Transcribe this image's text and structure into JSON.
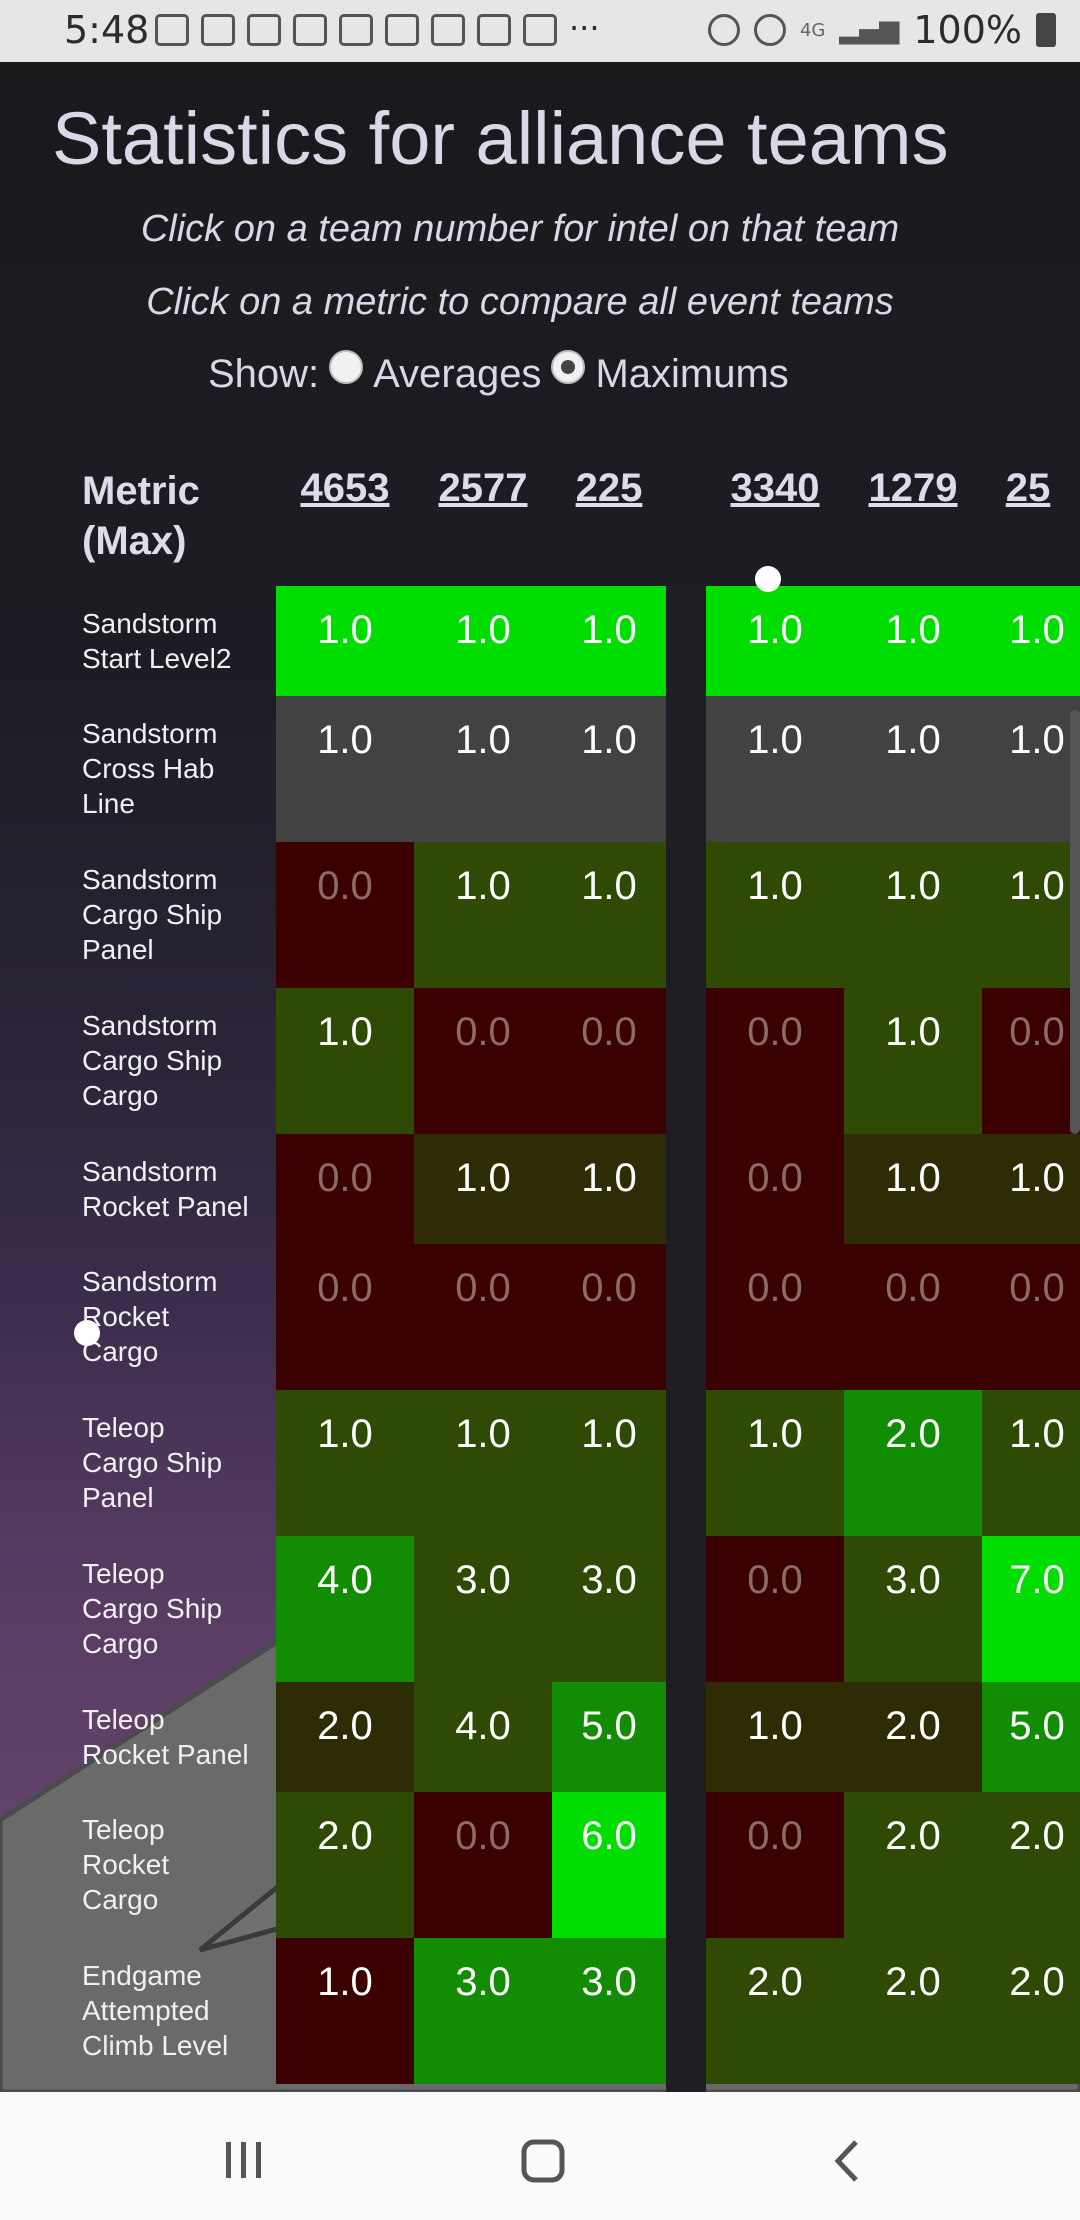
{
  "status_bar": {
    "time": "5:48",
    "battery": "100%",
    "network": "4G"
  },
  "page": {
    "title": "Statistics for alliance teams",
    "subtitle_1": "Click on a team number for intel on that team",
    "subtitle_2": "Click on a metric to compare all event teams",
    "show_label": "Show:",
    "option_averages": "Averages",
    "option_maximums": "Maximums",
    "selected_option": "Maximums"
  },
  "table": {
    "metric_header_line1": "Metric",
    "metric_header_line2": "(Max)",
    "teams": [
      "4653",
      "2577",
      "225",
      "3340",
      "1279",
      "25"
    ],
    "colors": {
      "bright": "#00dd00",
      "green": "#128c02",
      "dark_green": "#2e4a04",
      "olive": "#2e2c05",
      "maroon": "#3b0100",
      "gray": "#424242"
    },
    "rows": [
      {
        "line1": "Sandstorm",
        "line2": "Start Level2",
        "line3": "",
        "values": [
          "1.0",
          "1.0",
          "1.0",
          "1.0",
          "1.0",
          "1.0"
        ],
        "shades": [
          "bright",
          "bright",
          "bright",
          "bright",
          "bright",
          "bright"
        ]
      },
      {
        "line1": "Sandstorm",
        "line2": "Cross Hab",
        "line3": "Line",
        "values": [
          "1.0",
          "1.0",
          "1.0",
          "1.0",
          "1.0",
          "1.0"
        ],
        "shades": [
          "gray",
          "gray",
          "gray",
          "gray",
          "gray",
          "gray"
        ]
      },
      {
        "line1": "Sandstorm",
        "line2": "Cargo Ship",
        "line3": "Panel",
        "values": [
          "0.0",
          "1.0",
          "1.0",
          "1.0",
          "1.0",
          "1.0"
        ],
        "shades": [
          "maroon",
          "dark_green",
          "dark_green",
          "dark_green",
          "dark_green",
          "dark_green"
        ]
      },
      {
        "line1": "Sandstorm",
        "line2": "Cargo Ship",
        "line3": "Cargo",
        "values": [
          "1.0",
          "0.0",
          "0.0",
          "0.0",
          "1.0",
          "0.0"
        ],
        "shades": [
          "dark_green",
          "maroon",
          "maroon",
          "maroon",
          "dark_green",
          "maroon"
        ]
      },
      {
        "line1": "Sandstorm",
        "line2": "Rocket Panel",
        "line3": "",
        "values": [
          "0.0",
          "1.0",
          "1.0",
          "0.0",
          "1.0",
          "1.0"
        ],
        "shades": [
          "maroon",
          "olive",
          "olive",
          "maroon",
          "olive",
          "olive"
        ]
      },
      {
        "line1": "Sandstorm",
        "line2": "Rocket",
        "line3": "Cargo",
        "values": [
          "0.0",
          "0.0",
          "0.0",
          "0.0",
          "0.0",
          "0.0"
        ],
        "shades": [
          "maroon",
          "maroon",
          "maroon",
          "maroon",
          "maroon",
          "maroon"
        ]
      },
      {
        "line1": "Teleop",
        "line2": "Cargo Ship",
        "line3": "Panel",
        "values": [
          "1.0",
          "1.0",
          "1.0",
          "1.0",
          "2.0",
          "1.0"
        ],
        "shades": [
          "dark_green",
          "dark_green",
          "dark_green",
          "dark_green",
          "green",
          "dark_green"
        ]
      },
      {
        "line1": "Teleop",
        "line2": "Cargo Ship",
        "line3": "Cargo",
        "values": [
          "4.0",
          "3.0",
          "3.0",
          "0.0",
          "3.0",
          "7.0"
        ],
        "shades": [
          "green",
          "dark_green",
          "dark_green",
          "maroon",
          "dark_green",
          "bright"
        ]
      },
      {
        "line1": "Teleop",
        "line2": "Rocket Panel",
        "line3": "",
        "values": [
          "2.0",
          "4.0",
          "5.0",
          "1.0",
          "2.0",
          "5.0"
        ],
        "shades": [
          "olive",
          "dark_green",
          "green",
          "olive",
          "olive",
          "green"
        ]
      },
      {
        "line1": "Teleop",
        "line2": "Rocket",
        "line3": "Cargo",
        "values": [
          "2.0",
          "0.0",
          "6.0",
          "0.0",
          "2.0",
          "2.0"
        ],
        "shades": [
          "dark_green",
          "maroon",
          "bright",
          "maroon",
          "dark_green",
          "dark_green"
        ]
      },
      {
        "line1": "Endgame",
        "line2": "Attempted",
        "line3": "Climb Level",
        "values": [
          "1.0",
          "3.0",
          "3.0",
          "2.0",
          "2.0",
          "2.0"
        ],
        "shades": [
          "maroon",
          "green",
          "green",
          "dark_green",
          "dark_green",
          "dark_green"
        ]
      }
    ]
  }
}
